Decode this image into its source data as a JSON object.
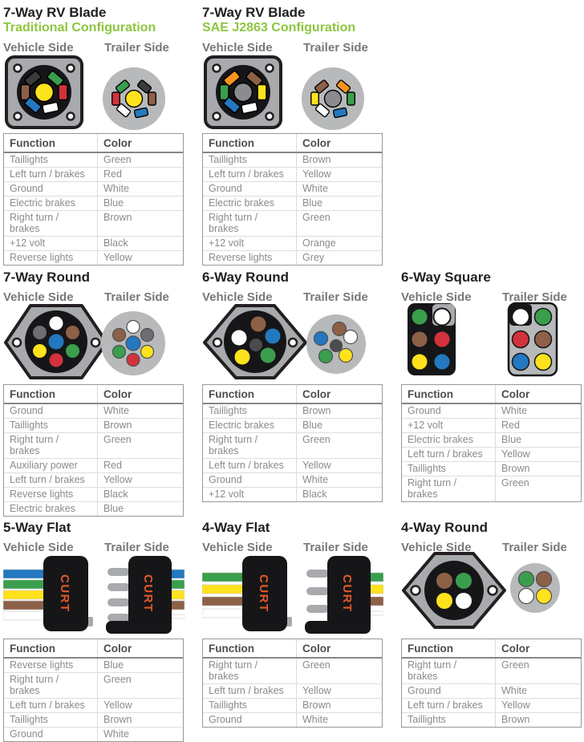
{
  "palette": {
    "title_black": "#231f20",
    "subtitle_green": "#8dc63f",
    "side_label_gray": "#77787b",
    "curt_logo_orange": "#e0592a",
    "green": "#3a9e4d",
    "red": "#d2323c",
    "blue": "#2378bf",
    "brown": "#8d6048",
    "yellow": "#fde21c",
    "orange": "#f7941d",
    "black_pin": "#3b3b3d",
    "gray_pin": "#6d6e71",
    "white": "#ffffff"
  },
  "sections": [
    {
      "title": "7-Way RV Blade",
      "subtitle": "Traditional Configuration",
      "vehicle_label": "Vehicle Side",
      "trailer_label": "Trailer Side",
      "pins": {
        "vehicle": [
          "#3b3b3d",
          "#3a9e4d",
          "#8d6048",
          "#d2323c",
          "#2378bf",
          "#ffffff",
          "#fde21c"
        ],
        "trailer": [
          "#3a9e4d",
          "#3b3b3d",
          "#d2323c",
          "#8d6048",
          "#ffffff",
          "#2378bf",
          "#fde21c"
        ]
      },
      "table": {
        "headers": [
          "Function",
          "Color"
        ],
        "rows": [
          [
            "Taillights",
            "Green"
          ],
          [
            "Left turn / brakes",
            "Red"
          ],
          [
            "Ground",
            "White"
          ],
          [
            "Electric brakes",
            "Blue"
          ],
          [
            "Right turn / brakes",
            "Brown"
          ],
          [
            "+12 volt",
            "Black"
          ],
          [
            "Reverse lights",
            "Yellow"
          ]
        ]
      }
    },
    {
      "title": "7-Way RV Blade",
      "subtitle": "SAE J2863 Configuration",
      "vehicle_label": "Vehicle Side",
      "trailer_label": "Trailer Side",
      "pins": {
        "vehicle": [
          "#f7941d",
          "#8d6048",
          "#3a9e4d",
          "#fde21c",
          "#2378bf",
          "#ffffff",
          "#8a8c8f"
        ],
        "trailer": [
          "#8d6048",
          "#f7941d",
          "#fde21c",
          "#3a9e4d",
          "#ffffff",
          "#2378bf",
          "#8a8c8f"
        ]
      },
      "table": {
        "headers": [
          "Function",
          "Color"
        ],
        "rows": [
          [
            "Taillights",
            "Brown"
          ],
          [
            "Left turn / brakes",
            "Yellow"
          ],
          [
            "Ground",
            "White"
          ],
          [
            "Electric brakes",
            "Blue"
          ],
          [
            "Right turn / brakes",
            "Green"
          ],
          [
            "+12 volt",
            "Orange"
          ],
          [
            "Reverse lights",
            "Grey"
          ]
        ]
      }
    },
    {
      "title": "7-Way Round",
      "vehicle_label": "Vehicle Side",
      "trailer_label": "Trailer Side",
      "pins": {
        "vehicle": [
          "#ffffff",
          "#6d6e71",
          "#8d6048",
          "#fde21c",
          "#3a9e4d",
          "#d2323c",
          "#2378bf"
        ],
        "trailer": [
          "#ffffff",
          "#8d6048",
          "#6d6e71",
          "#3a9e4d",
          "#fde21c",
          "#d2323c",
          "#2378bf"
        ]
      },
      "table": {
        "headers": [
          "Function",
          "Color"
        ],
        "rows": [
          [
            "Ground",
            "White"
          ],
          [
            "Taillights",
            "Brown"
          ],
          [
            "Right turn / brakes",
            "Green"
          ],
          [
            "Auxiliary power",
            "Red"
          ],
          [
            "Left turn / brakes",
            "Yellow"
          ],
          [
            "Reverse lights",
            "Black"
          ],
          [
            "Electric brakes",
            "Blue"
          ]
        ]
      }
    },
    {
      "title": "6-Way Round",
      "vehicle_label": "Vehicle Side",
      "trailer_label": "Trailer Side",
      "pins": {
        "vehicle": [
          "#8d6048",
          "#ffffff",
          "#2378bf",
          "#fde21c",
          "#3a9e4d",
          "#4b4b4d"
        ],
        "trailer": [
          "#8d6048",
          "#2378bf",
          "#ffffff",
          "#3a9e4d",
          "#fde21c",
          "#4b4b4d"
        ]
      },
      "table": {
        "headers": [
          "Function",
          "Color"
        ],
        "rows": [
          [
            "Taillights",
            "Brown"
          ],
          [
            "Electric brakes",
            "Blue"
          ],
          [
            "Right turn / brakes",
            "Green"
          ],
          [
            "Left turn / brakes",
            "Yellow"
          ],
          [
            "Ground",
            "White"
          ],
          [
            "+12 volt",
            "Black"
          ]
        ]
      }
    },
    {
      "title": "6-Way Square",
      "vehicle_label": "Vehicle Side",
      "trailer_label": "Trailer Side",
      "pins": {
        "vehicle": [
          "#3a9e4d",
          "#ffffff",
          "#8d6048",
          "#d2323c",
          "#fde21c",
          "#2378bf"
        ],
        "trailer": [
          "#ffffff",
          "#3a9e4d",
          "#d2323c",
          "#8d6048",
          "#2378bf",
          "#fde21c"
        ]
      },
      "table": {
        "headers": [
          "Function",
          "Color"
        ],
        "rows": [
          [
            "Ground",
            "White"
          ],
          [
            "+12 volt",
            "Red"
          ],
          [
            "Electric brakes",
            "Blue"
          ],
          [
            "Left turn / brakes",
            "Yellow"
          ],
          [
            "Taillights",
            "Brown"
          ],
          [
            "Right turn / brakes",
            "Green"
          ]
        ]
      }
    },
    {
      "title": "5-Way Flat",
      "vehicle_label": "Vehicle Side",
      "trailer_label": "Trailer Side",
      "logo": "CURT",
      "wires": [
        "#2378bf",
        "#3a9e4d",
        "#ffe11d",
        "#8d6048",
        "#ffffff"
      ],
      "table": {
        "headers": [
          "Function",
          "Color"
        ],
        "rows": [
          [
            "Reverse lights",
            "Blue"
          ],
          [
            "Right turn / brakes",
            "Green"
          ],
          [
            "Left turn / brakes",
            "Yellow"
          ],
          [
            "Taillights",
            "Brown"
          ],
          [
            "Ground",
            "White"
          ]
        ]
      }
    },
    {
      "title": "4-Way Flat",
      "vehicle_label": "Vehicle Side",
      "trailer_label": "Trailer Side",
      "logo": "CURT",
      "wires": [
        "#3a9e4d",
        "#ffe11d",
        "#8d6048",
        "#ffffff"
      ],
      "table": {
        "headers": [
          "Function",
          "Color"
        ],
        "rows": [
          [
            "Right turn / brakes",
            "Green"
          ],
          [
            "Left turn / brakes",
            "Yellow"
          ],
          [
            "Taillights",
            "Brown"
          ],
          [
            "Ground",
            "White"
          ]
        ]
      }
    },
    {
      "title": "4-Way Round",
      "vehicle_label": "Vehicle Side",
      "trailer_label": "Trailer Side",
      "pins": {
        "vehicle": [
          "#8d6048",
          "#3a9e4d",
          "#fde21c",
          "#ffffff"
        ],
        "trailer": [
          "#3a9e4d",
          "#8d6048",
          "#ffffff",
          "#fde21c"
        ]
      },
      "table": {
        "headers": [
          "Function",
          "Color"
        ],
        "rows": [
          [
            "Right turn / brakes",
            "Green"
          ],
          [
            "Ground",
            "White"
          ],
          [
            "Left turn / brakes",
            "Yellow"
          ],
          [
            "Taillights",
            "Brown"
          ]
        ]
      }
    }
  ]
}
